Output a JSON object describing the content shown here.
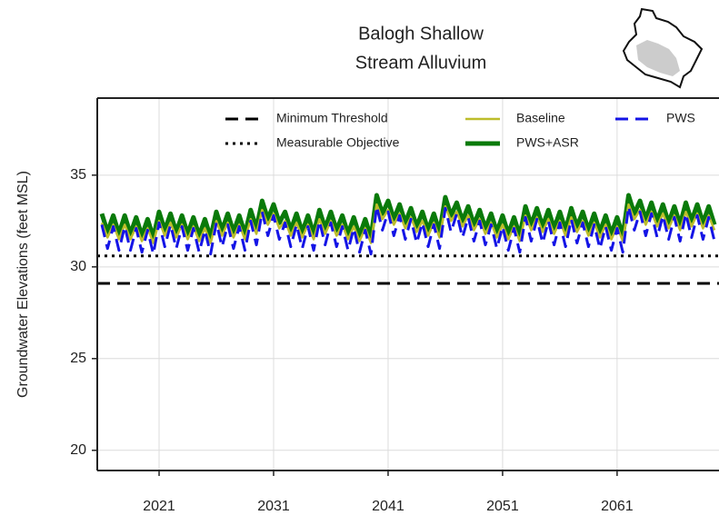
{
  "chart_data": {
    "type": "line",
    "title_lines": [
      "Balogh Shallow",
      "Stream Alluvium"
    ],
    "ylabel": "Groundwater Elevations (feet MSL)",
    "xlim": [
      2015.6,
      2069.9
    ],
    "ylim": [
      18.9,
      39.2
    ],
    "xticks": [
      2021,
      2031,
      2041,
      2051,
      2061
    ],
    "yticks": [
      20,
      25,
      30,
      35
    ],
    "grid": true,
    "legend_loc": "upper center",
    "hlines": [
      {
        "name": "Minimum Threshold",
        "value": 29.1,
        "color": "#000000",
        "style": "dashed"
      },
      {
        "name": "Measurable Objective",
        "value": 30.6,
        "color": "#000000",
        "style": "dotted"
      }
    ],
    "x": [
      2016,
      2016.5,
      2017,
      2017.5,
      2018,
      2018.5,
      2019,
      2019.5,
      2020,
      2020.5,
      2021,
      2021.5,
      2022,
      2022.5,
      2023,
      2023.5,
      2024,
      2024.5,
      2025,
      2025.5,
      2026,
      2026.5,
      2027,
      2027.5,
      2028,
      2028.5,
      2029,
      2029.5,
      2030,
      2030.5,
      2031,
      2031.5,
      2032,
      2032.5,
      2033,
      2033.5,
      2034,
      2034.5,
      2035,
      2035.5,
      2036,
      2036.5,
      2037,
      2037.5,
      2038,
      2038.5,
      2039,
      2039.5,
      2040,
      2040.5,
      2041,
      2041.5,
      2042,
      2042.5,
      2043,
      2043.5,
      2044,
      2044.5,
      2045,
      2045.5,
      2046,
      2046.5,
      2047,
      2047.5,
      2048,
      2048.5,
      2049,
      2049.5,
      2050,
      2050.5,
      2051,
      2051.5,
      2052,
      2052.5,
      2053,
      2053.5,
      2054,
      2054.5,
      2055,
      2055.5,
      2056,
      2056.5,
      2057,
      2057.5,
      2058,
      2058.5,
      2059,
      2059.5,
      2060,
      2060.5,
      2061,
      2061.5,
      2062,
      2062.5,
      2063,
      2063.5,
      2064,
      2064.5,
      2065,
      2065.5,
      2066,
      2066.5,
      2067,
      2067.5,
      2068,
      2068.5,
      2069,
      2069.5
    ],
    "series": [
      {
        "name": "Baseline",
        "color": "#bdbd2b",
        "width": 2.5,
        "style": "solid",
        "values": [
          32.4,
          31.6,
          32.3,
          31.5,
          32.3,
          31.5,
          32.2,
          31.4,
          32.1,
          31.3,
          32.5,
          31.7,
          32.4,
          31.6,
          32.3,
          31.5,
          32.2,
          31.4,
          32.1,
          31.3,
          32.5,
          31.7,
          32.4,
          31.6,
          32.3,
          31.5,
          32.6,
          31.8,
          33.1,
          32.3,
          32.9,
          32.1,
          32.5,
          31.7,
          32.4,
          31.6,
          32.3,
          31.5,
          32.6,
          31.8,
          32.5,
          31.7,
          32.3,
          31.5,
          32.2,
          31.4,
          32.1,
          31.3,
          33.4,
          32.6,
          33.1,
          32.3,
          32.9,
          32.1,
          32.7,
          31.9,
          32.5,
          31.7,
          32.4,
          31.6,
          33.3,
          32.5,
          33.0,
          32.2,
          32.8,
          32.0,
          32.6,
          31.8,
          32.4,
          31.6,
          32.3,
          31.5,
          32.2,
          31.4,
          32.8,
          32.0,
          32.7,
          31.9,
          32.6,
          31.8,
          32.5,
          31.7,
          32.7,
          31.9,
          32.5,
          31.7,
          32.4,
          31.6,
          32.3,
          31.5,
          32.2,
          31.4,
          33.4,
          32.6,
          33.1,
          32.3,
          33.0,
          32.2,
          32.9,
          32.1,
          32.8,
          32.0,
          33.0,
          32.2,
          32.9,
          32.1,
          32.8,
          32.0
        ]
      },
      {
        "name": "PWS+ASR",
        "color": "#0a7a0a",
        "width": 5,
        "style": "solid",
        "values": [
          32.9,
          31.9,
          32.8,
          31.8,
          32.8,
          31.8,
          32.7,
          31.7,
          32.6,
          31.6,
          33.0,
          32.0,
          32.9,
          31.9,
          32.8,
          31.8,
          32.7,
          31.7,
          32.6,
          31.6,
          33.0,
          32.0,
          32.9,
          31.9,
          32.8,
          31.8,
          33.1,
          32.1,
          33.6,
          32.6,
          33.4,
          32.4,
          33.0,
          32.0,
          32.9,
          31.9,
          32.8,
          31.8,
          33.1,
          32.1,
          33.0,
          32.0,
          32.8,
          31.8,
          32.7,
          31.7,
          32.6,
          31.6,
          33.9,
          32.9,
          33.6,
          32.6,
          33.4,
          32.4,
          33.2,
          32.2,
          33.0,
          32.0,
          32.9,
          31.9,
          33.8,
          32.8,
          33.5,
          32.5,
          33.3,
          32.3,
          33.1,
          32.1,
          32.9,
          31.9,
          32.8,
          31.8,
          32.7,
          31.7,
          33.3,
          32.3,
          33.2,
          32.2,
          33.1,
          32.1,
          33.0,
          32.0,
          33.2,
          32.2,
          33.0,
          32.0,
          32.9,
          31.9,
          32.8,
          31.8,
          32.7,
          31.7,
          33.9,
          32.9,
          33.6,
          32.6,
          33.5,
          32.5,
          33.4,
          32.4,
          33.3,
          32.3,
          33.5,
          32.5,
          33.4,
          32.4,
          33.3,
          32.3
        ]
      },
      {
        "name": "PWS",
        "color": "#1414e6",
        "width": 3,
        "style": "dashed",
        "values": [
          32.3,
          31.0,
          32.2,
          30.9,
          32.2,
          30.9,
          32.1,
          30.8,
          32.0,
          30.7,
          32.4,
          31.1,
          32.3,
          31.0,
          32.2,
          30.9,
          32.1,
          30.8,
          32.0,
          30.7,
          32.4,
          31.1,
          32.3,
          31.0,
          32.2,
          30.9,
          32.5,
          31.2,
          33.0,
          31.7,
          32.8,
          31.5,
          32.4,
          31.1,
          32.3,
          31.0,
          32.2,
          30.9,
          32.5,
          31.2,
          32.4,
          31.1,
          32.2,
          30.9,
          32.1,
          30.8,
          32.0,
          30.7,
          33.3,
          32.0,
          33.0,
          31.7,
          32.8,
          31.5,
          32.6,
          31.3,
          32.4,
          31.1,
          32.3,
          31.0,
          33.2,
          31.9,
          32.9,
          31.6,
          32.7,
          31.4,
          32.5,
          31.2,
          32.3,
          31.0,
          32.2,
          30.9,
          32.1,
          30.8,
          32.7,
          31.4,
          32.6,
          31.3,
          32.5,
          31.2,
          32.4,
          31.1,
          32.6,
          31.3,
          32.4,
          31.1,
          32.3,
          31.0,
          32.2,
          30.9,
          32.1,
          30.8,
          33.3,
          32.0,
          33.0,
          31.7,
          32.9,
          31.6,
          32.8,
          31.5,
          32.7,
          31.4,
          32.9,
          31.6,
          32.8,
          31.5,
          32.7,
          31.4
        ]
      }
    ]
  }
}
